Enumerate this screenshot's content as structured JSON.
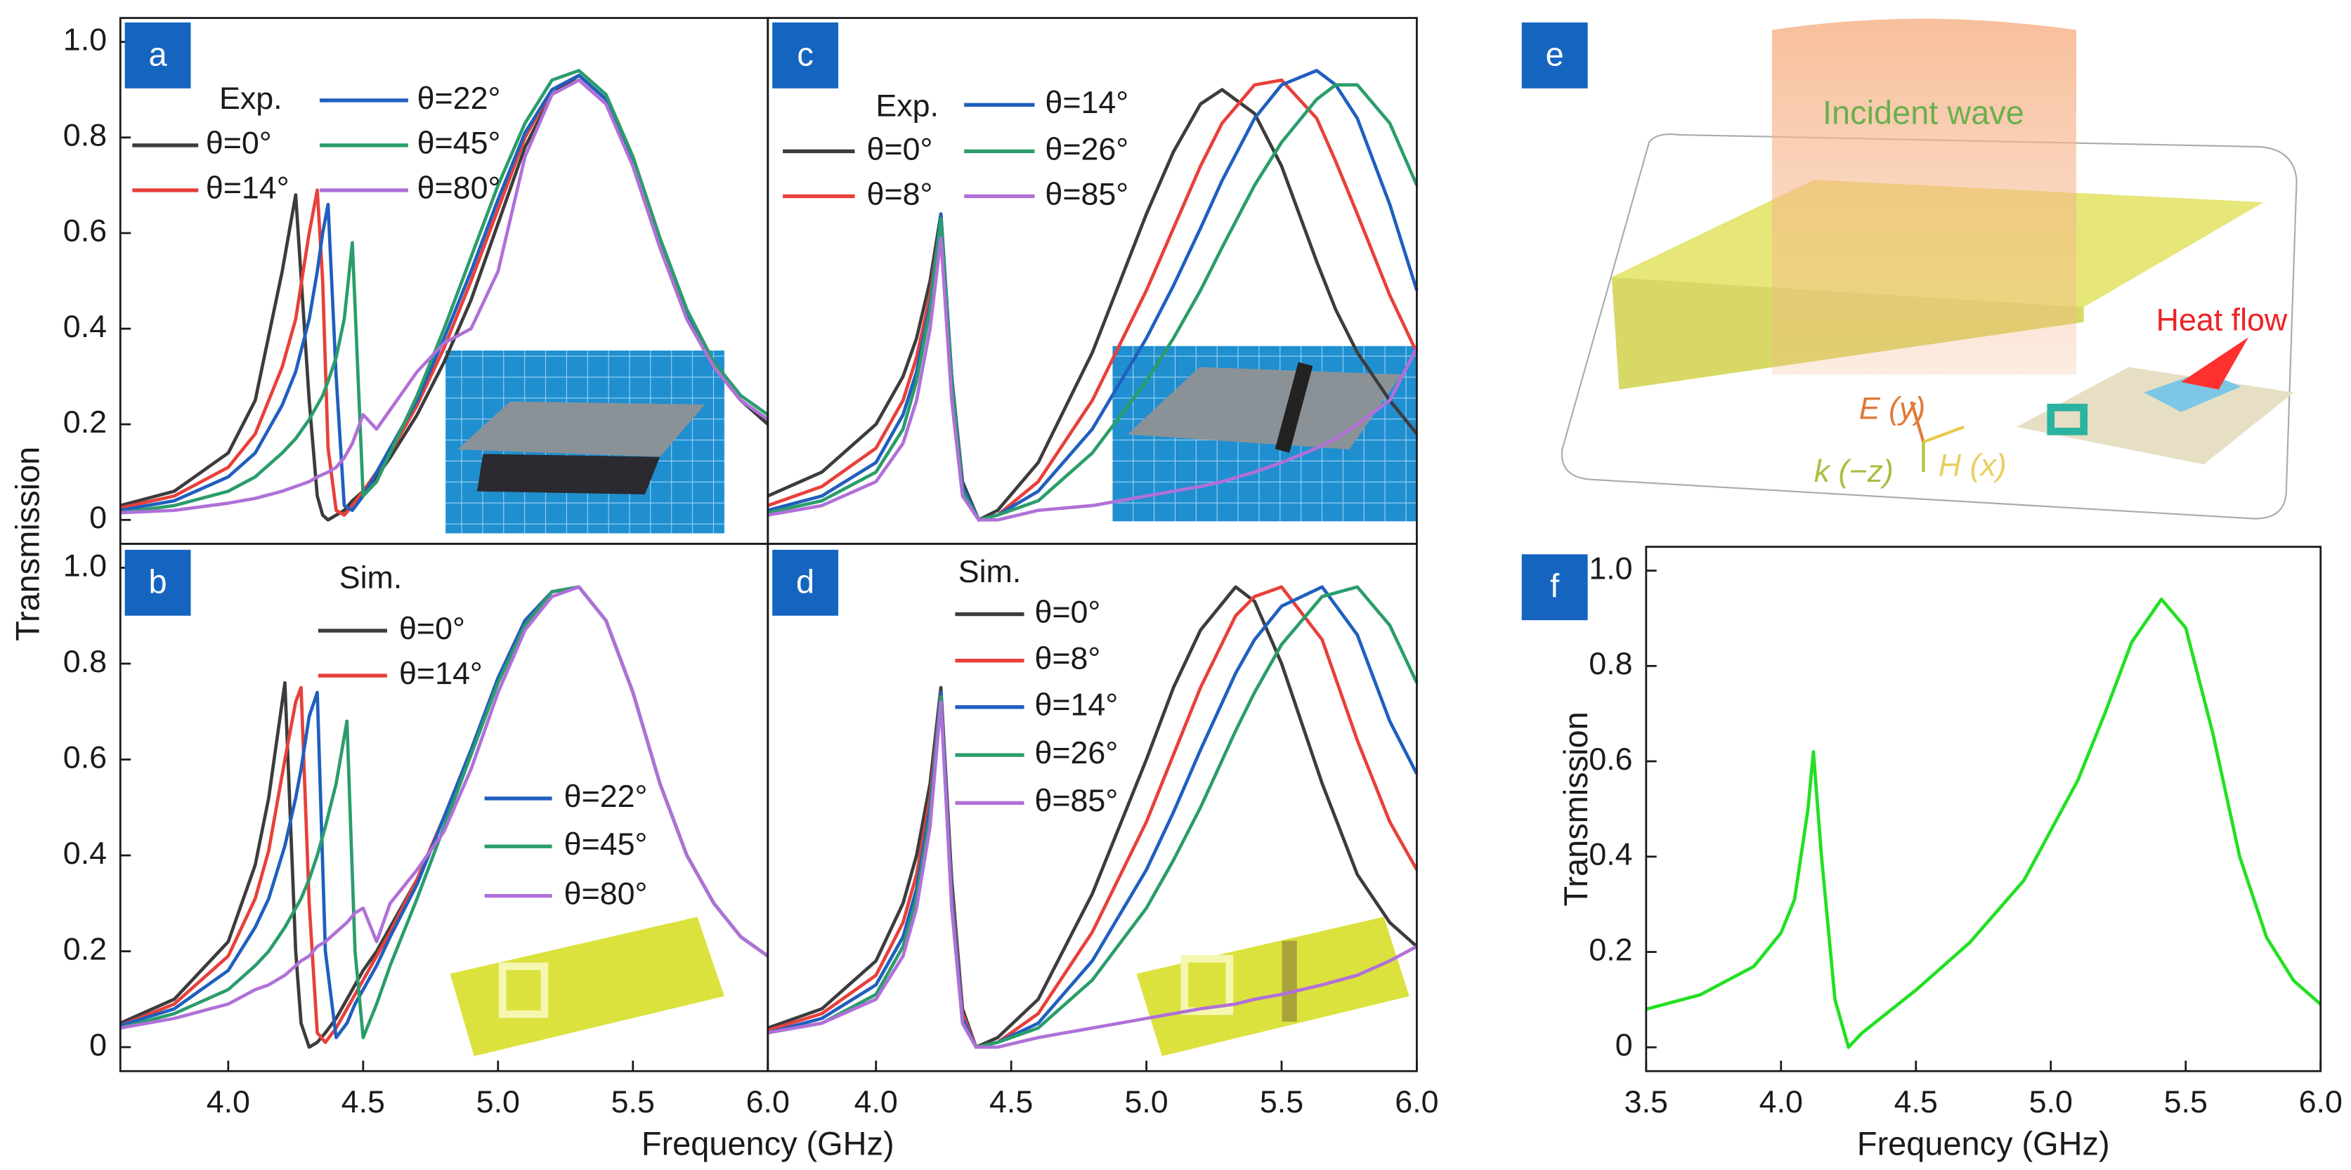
{
  "shared_axes": {
    "ylabel": "Transmission",
    "xlabel": "Frequency (GHz)"
  },
  "illustration": {
    "label": "e",
    "incident": "Incident wave",
    "heat": "Heat flow",
    "e_field": "E (y)",
    "h_field": "H (x)",
    "k_vector": "k (−z)"
  },
  "chart_data": [
    {
      "type": "line",
      "label": "a",
      "legend_title": "Exp.",
      "xlim": [
        3.6,
        6.0
      ],
      "ylim": [
        -0.05,
        1.05
      ],
      "yticks": [
        0,
        0.2,
        0.4,
        0.6,
        0.8,
        {
          "value": 1,
          "label": "1.0"
        }
      ],
      "x": [
        3.6,
        3.8,
        4.0,
        4.1,
        4.2,
        4.25,
        4.3,
        4.33,
        4.35,
        4.37,
        4.4,
        4.43,
        4.46,
        4.5,
        4.55,
        4.6,
        4.7,
        4.8,
        4.9,
        5.0,
        5.1,
        5.2,
        5.3,
        5.4,
        5.5,
        5.6,
        5.7,
        5.8,
        5.9,
        6.0
      ],
      "series": [
        {
          "name": "θ=0°",
          "color": "#3c3c3c",
          "values": [
            0.03,
            0.06,
            0.14,
            0.25,
            0.52,
            0.68,
            0.25,
            0.05,
            0.01,
            0.0,
            0.01,
            0.02,
            0.04,
            0.06,
            0.09,
            0.13,
            0.22,
            0.33,
            0.46,
            0.62,
            0.78,
            0.89,
            0.93,
            0.88,
            0.74,
            0.57,
            0.42,
            0.32,
            0.25,
            0.2
          ]
        },
        {
          "name": "θ=14°",
          "color": "#e8403a",
          "values": [
            0.025,
            0.05,
            0.11,
            0.18,
            0.32,
            0.42,
            0.6,
            0.69,
            0.5,
            0.15,
            0.02,
            0.01,
            0.03,
            0.06,
            0.1,
            0.14,
            0.24,
            0.36,
            0.5,
            0.65,
            0.8,
            0.9,
            0.93,
            0.88,
            0.75,
            0.58,
            0.43,
            0.32,
            0.25,
            0.21
          ]
        },
        {
          "name": "θ=22°",
          "color": "#1f5fbf",
          "values": [
            0.02,
            0.04,
            0.09,
            0.14,
            0.24,
            0.31,
            0.42,
            0.52,
            0.6,
            0.66,
            0.3,
            0.03,
            0.02,
            0.05,
            0.1,
            0.15,
            0.25,
            0.38,
            0.52,
            0.67,
            0.81,
            0.9,
            0.93,
            0.88,
            0.75,
            0.58,
            0.43,
            0.32,
            0.25,
            0.21
          ]
        },
        {
          "name": "θ=45°",
          "color": "#2a9d6a",
          "values": [
            0.015,
            0.03,
            0.06,
            0.09,
            0.14,
            0.17,
            0.21,
            0.24,
            0.26,
            0.29,
            0.34,
            0.42,
            0.58,
            0.05,
            0.08,
            0.14,
            0.26,
            0.4,
            0.55,
            0.7,
            0.83,
            0.92,
            0.94,
            0.89,
            0.76,
            0.59,
            0.44,
            0.33,
            0.26,
            0.22
          ]
        },
        {
          "name": "θ=80°",
          "color": "#b070d8",
          "values": [
            0.015,
            0.02,
            0.035,
            0.045,
            0.06,
            0.07,
            0.08,
            0.09,
            0.095,
            0.1,
            0.11,
            0.13,
            0.16,
            0.22,
            0.19,
            0.23,
            0.31,
            0.37,
            0.4,
            0.52,
            0.76,
            0.89,
            0.92,
            0.87,
            0.74,
            0.57,
            0.42,
            0.32,
            0.25,
            0.21
          ]
        }
      ]
    },
    {
      "type": "line",
      "label": "b",
      "legend_title": "Sim.",
      "xlim": [
        3.6,
        6.0
      ],
      "ylim": [
        -0.05,
        1.05
      ],
      "yticks": [
        0,
        0.2,
        0.4,
        0.6,
        0.8,
        {
          "value": 1,
          "label": "1.0"
        }
      ],
      "xticks": [
        {
          "value": 4,
          "label": "4.0"
        },
        4.5,
        {
          "value": 5,
          "label": "5.0"
        },
        5.5,
        {
          "value": 6,
          "label": "6.0"
        }
      ],
      "x": [
        3.6,
        3.8,
        4.0,
        4.1,
        4.15,
        4.21,
        4.25,
        4.27,
        4.3,
        4.33,
        4.36,
        4.4,
        4.44,
        4.47,
        4.5,
        4.55,
        4.6,
        4.7,
        4.8,
        4.9,
        5.0,
        5.1,
        5.2,
        5.3,
        5.4,
        5.5,
        5.6,
        5.7,
        5.8,
        5.9,
        6.0
      ],
      "series": [
        {
          "name": "θ=0°",
          "color": "#3c3c3c",
          "values": [
            0.05,
            0.1,
            0.22,
            0.38,
            0.52,
            0.76,
            0.2,
            0.05,
            0.0,
            0.01,
            0.03,
            0.06,
            0.1,
            0.13,
            0.16,
            0.2,
            0.25,
            0.35,
            0.48,
            0.62,
            0.77,
            0.89,
            0.95,
            0.96,
            0.89,
            0.74,
            0.55,
            0.4,
            0.3,
            0.23,
            0.19
          ]
        },
        {
          "name": "θ=14°",
          "color": "#e8403a",
          "values": [
            0.045,
            0.09,
            0.19,
            0.31,
            0.41,
            0.6,
            0.72,
            0.75,
            0.3,
            0.03,
            0.01,
            0.04,
            0.08,
            0.11,
            0.14,
            0.19,
            0.24,
            0.35,
            0.48,
            0.62,
            0.77,
            0.89,
            0.95,
            0.96,
            0.89,
            0.74,
            0.55,
            0.4,
            0.3,
            0.23,
            0.19
          ]
        },
        {
          "name": "θ=22°",
          "color": "#1f5fbf",
          "values": [
            0.045,
            0.08,
            0.16,
            0.25,
            0.31,
            0.42,
            0.52,
            0.58,
            0.69,
            0.74,
            0.2,
            0.02,
            0.05,
            0.09,
            0.12,
            0.17,
            0.23,
            0.34,
            0.48,
            0.62,
            0.77,
            0.89,
            0.95,
            0.96,
            0.89,
            0.74,
            0.55,
            0.4,
            0.3,
            0.23,
            0.19
          ]
        },
        {
          "name": "θ=45°",
          "color": "#2a9d6a",
          "values": [
            0.04,
            0.07,
            0.12,
            0.17,
            0.2,
            0.25,
            0.29,
            0.31,
            0.35,
            0.4,
            0.46,
            0.55,
            0.68,
            0.2,
            0.02,
            0.09,
            0.17,
            0.31,
            0.46,
            0.61,
            0.76,
            0.88,
            0.95,
            0.96,
            0.89,
            0.74,
            0.55,
            0.4,
            0.3,
            0.23,
            0.19
          ]
        },
        {
          "name": "θ=80°",
          "color": "#b070d8",
          "values": [
            0.04,
            0.06,
            0.09,
            0.12,
            0.13,
            0.15,
            0.17,
            0.18,
            0.19,
            0.21,
            0.22,
            0.24,
            0.26,
            0.28,
            0.29,
            0.22,
            0.3,
            0.37,
            0.45,
            0.58,
            0.74,
            0.87,
            0.94,
            0.96,
            0.89,
            0.74,
            0.55,
            0.4,
            0.3,
            0.23,
            0.19
          ]
        }
      ]
    },
    {
      "type": "line",
      "label": "c",
      "legend_title": "Exp.",
      "xlim": [
        3.6,
        6.0
      ],
      "ylim": [
        -0.05,
        1.05
      ],
      "x": [
        3.6,
        3.8,
        4.0,
        4.1,
        4.15,
        4.2,
        4.24,
        4.28,
        4.32,
        4.38,
        4.45,
        4.6,
        4.8,
        5.0,
        5.1,
        5.2,
        5.28,
        5.4,
        5.5,
        5.63,
        5.7,
        5.78,
        5.9,
        6.0
      ],
      "series": [
        {
          "name": "θ=0°",
          "color": "#3c3c3c",
          "values": [
            0.05,
            0.1,
            0.2,
            0.3,
            0.38,
            0.5,
            0.64,
            0.3,
            0.08,
            0.0,
            0.02,
            0.12,
            0.35,
            0.64,
            0.77,
            0.87,
            0.9,
            0.85,
            0.74,
            0.54,
            0.44,
            0.35,
            0.25,
            0.18
          ]
        },
        {
          "name": "θ=8°",
          "color": "#e8403a",
          "values": [
            0.03,
            0.07,
            0.15,
            0.25,
            0.34,
            0.47,
            0.63,
            0.3,
            0.07,
            0.0,
            0.01,
            0.08,
            0.25,
            0.48,
            0.61,
            0.74,
            0.83,
            0.91,
            0.92,
            0.84,
            0.75,
            0.64,
            0.47,
            0.35
          ]
        },
        {
          "name": "θ=14°",
          "color": "#1f5fbf",
          "values": [
            0.02,
            0.05,
            0.12,
            0.22,
            0.31,
            0.45,
            0.64,
            0.3,
            0.07,
            0.0,
            0.01,
            0.06,
            0.19,
            0.38,
            0.49,
            0.61,
            0.71,
            0.84,
            0.91,
            0.94,
            0.91,
            0.84,
            0.66,
            0.48
          ]
        },
        {
          "name": "θ=26°",
          "color": "#2a9d6a",
          "values": [
            0.015,
            0.04,
            0.1,
            0.19,
            0.29,
            0.44,
            0.63,
            0.29,
            0.06,
            0.0,
            0.01,
            0.04,
            0.14,
            0.29,
            0.38,
            0.48,
            0.57,
            0.7,
            0.79,
            0.88,
            0.91,
            0.91,
            0.83,
            0.7
          ]
        },
        {
          "name": "θ=85°",
          "color": "#b070d8",
          "values": [
            0.01,
            0.03,
            0.08,
            0.16,
            0.25,
            0.4,
            0.59,
            0.25,
            0.05,
            0.0,
            0.0,
            0.02,
            0.03,
            0.05,
            0.06,
            0.07,
            0.08,
            0.1,
            0.12,
            0.15,
            0.17,
            0.2,
            0.25,
            0.36
          ]
        }
      ]
    },
    {
      "type": "line",
      "label": "d",
      "legend_title": "Sim.",
      "xlim": [
        3.6,
        6.0
      ],
      "ylim": [
        -0.05,
        1.05
      ],
      "xticks": [
        {
          "value": 4,
          "label": "4.0"
        },
        4.5,
        {
          "value": 5,
          "label": "5.0"
        },
        5.5,
        {
          "value": 6,
          "label": "6.0"
        }
      ],
      "x": [
        3.6,
        3.8,
        4.0,
        4.1,
        4.15,
        4.2,
        4.24,
        4.28,
        4.32,
        4.37,
        4.45,
        4.6,
        4.8,
        5.0,
        5.1,
        5.2,
        5.33,
        5.4,
        5.5,
        5.65,
        5.78,
        5.9,
        6.0
      ],
      "series": [
        {
          "name": "θ=0°",
          "color": "#3c3c3c",
          "values": [
            0.04,
            0.08,
            0.18,
            0.3,
            0.4,
            0.55,
            0.75,
            0.35,
            0.08,
            0.0,
            0.02,
            0.1,
            0.32,
            0.6,
            0.75,
            0.87,
            0.96,
            0.93,
            0.8,
            0.55,
            0.36,
            0.26,
            0.21
          ]
        },
        {
          "name": "θ=8°",
          "color": "#e8403a",
          "values": [
            0.035,
            0.07,
            0.15,
            0.26,
            0.36,
            0.52,
            0.74,
            0.33,
            0.07,
            0.0,
            0.01,
            0.07,
            0.24,
            0.47,
            0.61,
            0.75,
            0.9,
            0.94,
            0.96,
            0.85,
            0.64,
            0.47,
            0.37
          ]
        },
        {
          "name": "θ=14°",
          "color": "#1f5fbf",
          "values": [
            0.03,
            0.06,
            0.13,
            0.23,
            0.33,
            0.5,
            0.74,
            0.32,
            0.06,
            0.0,
            0.01,
            0.05,
            0.18,
            0.37,
            0.49,
            0.62,
            0.78,
            0.85,
            0.92,
            0.96,
            0.86,
            0.68,
            0.57
          ]
        },
        {
          "name": "θ=26°",
          "color": "#2a9d6a",
          "values": [
            0.03,
            0.05,
            0.11,
            0.21,
            0.31,
            0.48,
            0.73,
            0.3,
            0.05,
            0.0,
            0.01,
            0.04,
            0.14,
            0.29,
            0.39,
            0.5,
            0.66,
            0.74,
            0.84,
            0.94,
            0.96,
            0.88,
            0.76
          ]
        },
        {
          "name": "θ=85°",
          "color": "#b070d8",
          "values": [
            0.03,
            0.05,
            0.1,
            0.19,
            0.29,
            0.46,
            0.72,
            0.29,
            0.05,
            0.0,
            0.0,
            0.02,
            0.04,
            0.06,
            0.07,
            0.08,
            0.09,
            0.1,
            0.11,
            0.13,
            0.15,
            0.18,
            0.21
          ]
        }
      ]
    },
    {
      "type": "line",
      "label": "f",
      "ylabel": "Transmission",
      "xlabel": "Frequency (GHz)",
      "xlim": [
        3.5,
        6.0
      ],
      "ylim": [
        -0.05,
        1.05
      ],
      "yticks": [
        0,
        0.2,
        0.4,
        0.6,
        0.8,
        {
          "value": 1,
          "label": "1.0"
        }
      ],
      "xticks": [
        3.5,
        {
          "value": 4,
          "label": "4.0"
        },
        4.5,
        {
          "value": 5,
          "label": "5.0"
        },
        5.5,
        {
          "value": 6,
          "label": "6.0"
        }
      ],
      "x": [
        3.5,
        3.7,
        3.9,
        4.0,
        4.05,
        4.1,
        4.12,
        4.15,
        4.2,
        4.25,
        4.3,
        4.5,
        4.7,
        4.9,
        5.1,
        5.2,
        5.3,
        5.41,
        5.5,
        5.6,
        5.7,
        5.8,
        5.9,
        6.0
      ],
      "series": [
        {
          "color": "#22e022",
          "values": [
            0.08,
            0.11,
            0.17,
            0.24,
            0.31,
            0.5,
            0.62,
            0.4,
            0.1,
            0.0,
            0.03,
            0.12,
            0.22,
            0.35,
            0.56,
            0.7,
            0.85,
            0.94,
            0.88,
            0.66,
            0.4,
            0.23,
            0.14,
            0.09
          ]
        }
      ]
    }
  ]
}
